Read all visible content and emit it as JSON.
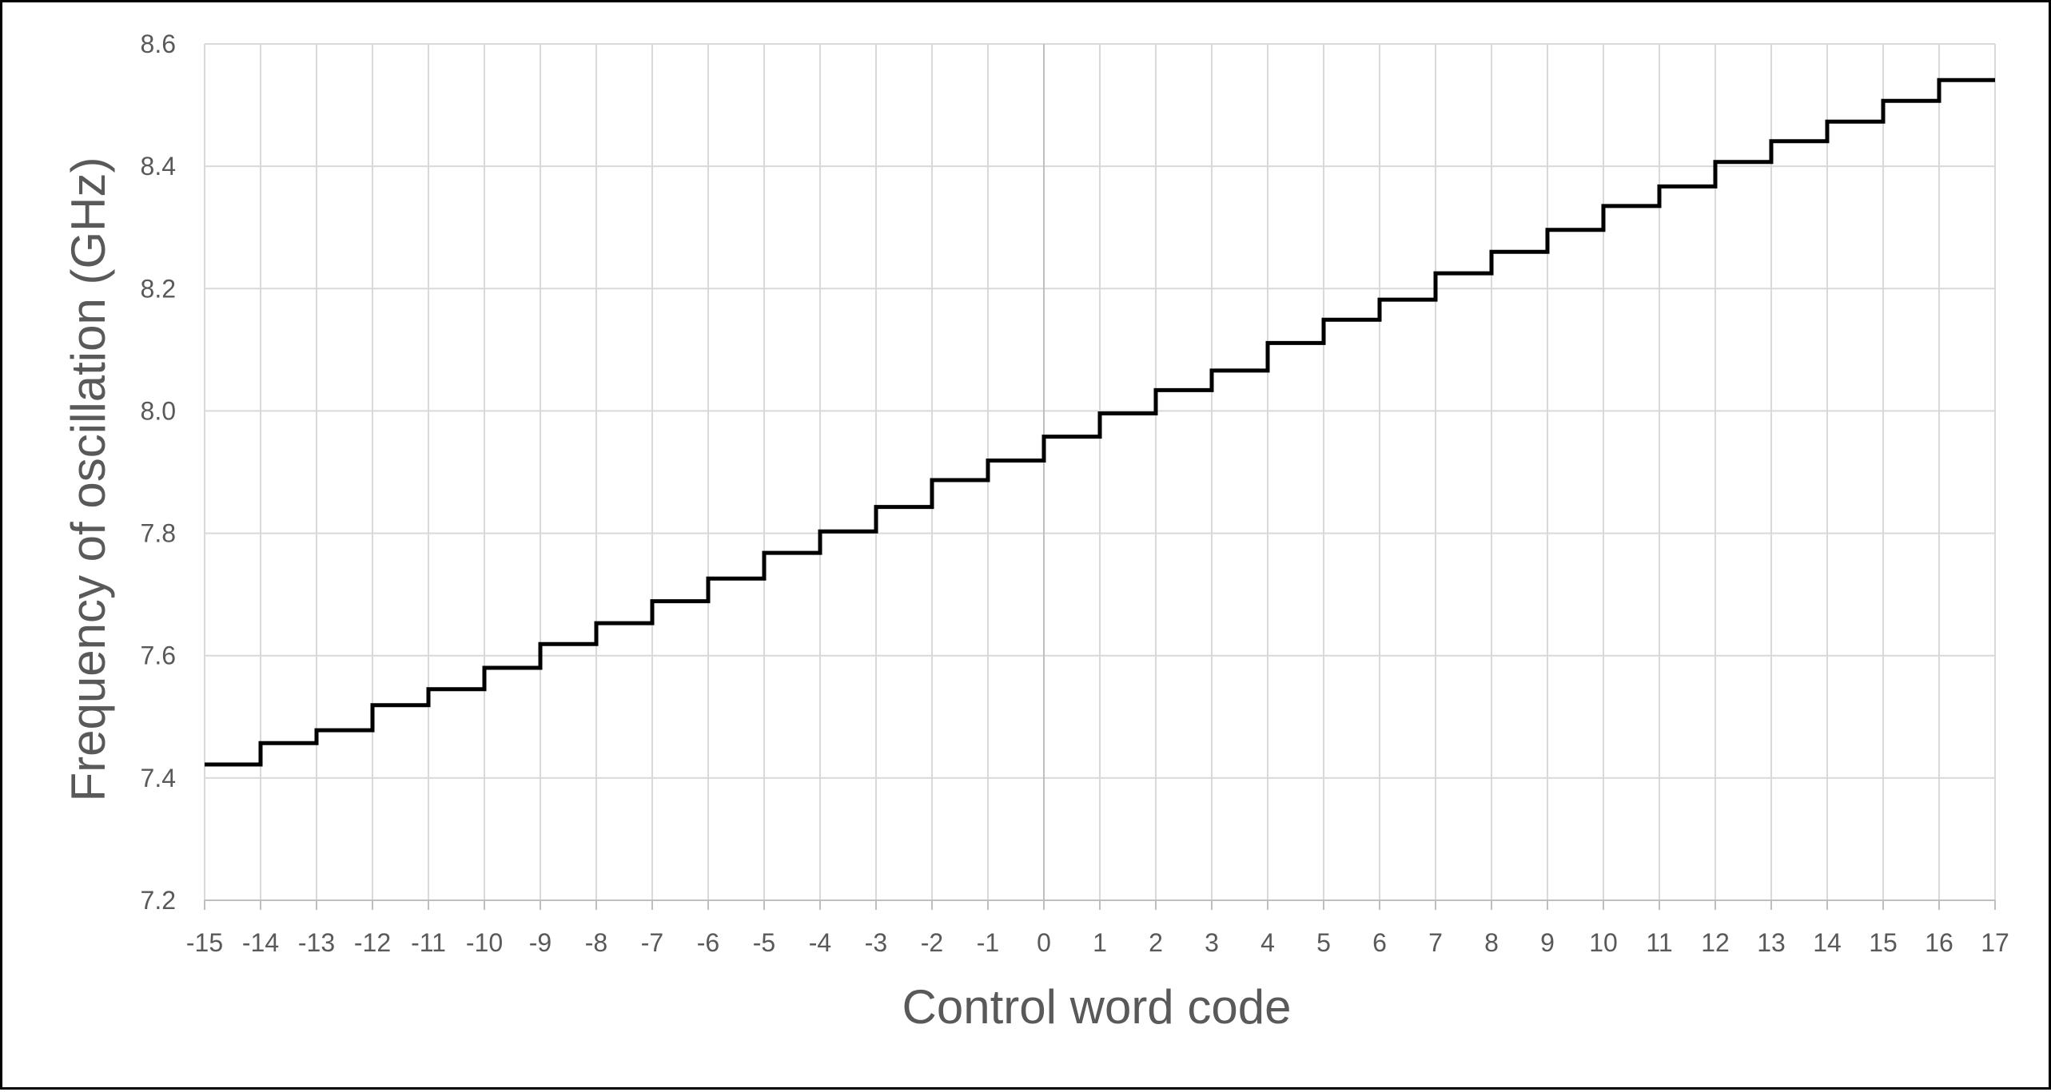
{
  "chart_data": {
    "type": "line",
    "line_style": "step-post",
    "title": "",
    "xlabel": "Control word code",
    "ylabel": "Frequency of oscillation (GHz)",
    "xlim": [
      -15,
      17
    ],
    "ylim": [
      7.2,
      8.6
    ],
    "x_ticks": [
      "-15",
      "-14",
      "-13",
      "-12",
      "-11",
      "-10",
      "-9",
      "-8",
      "-7",
      "-6",
      "-5",
      "-4",
      "-3",
      "-2",
      "-1",
      "0",
      "1",
      "2",
      "3",
      "4",
      "5",
      "6",
      "7",
      "8",
      "9",
      "10",
      "11",
      "12",
      "13",
      "14",
      "15",
      "16",
      "17"
    ],
    "y_ticks": [
      "7.2",
      "7.4",
      "7.6",
      "7.8",
      "8.0",
      "8.2",
      "8.4",
      "8.6"
    ],
    "grid": true,
    "legend": "none",
    "series": [
      {
        "color": "#000000",
        "x": [
          -15,
          -14,
          -13,
          -12,
          -11,
          -10,
          -9,
          -8,
          -7,
          -6,
          -5,
          -4,
          -3,
          -2,
          -1,
          0,
          1,
          2,
          3,
          4,
          5,
          6,
          7,
          8,
          9,
          10,
          11,
          12,
          13,
          14,
          15,
          16,
          17
        ],
        "values": [
          7.422,
          7.457,
          7.478,
          7.519,
          7.545,
          7.58,
          7.619,
          7.653,
          7.689,
          7.726,
          7.768,
          7.803,
          7.843,
          7.887,
          7.919,
          7.958,
          7.996,
          8.034,
          8.066,
          8.111,
          8.149,
          8.182,
          8.225,
          8.26,
          8.296,
          8.335,
          8.367,
          8.407,
          8.441,
          8.473,
          8.507,
          8.541,
          8.541
        ]
      }
    ]
  }
}
